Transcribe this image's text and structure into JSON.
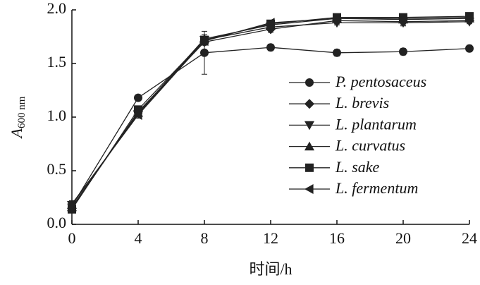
{
  "chart_data": {
    "type": "line",
    "xlabel": "时间/h",
    "ylabel": {
      "text": "A",
      "subscript": "600 nm"
    },
    "x": [
      0,
      4,
      8,
      12,
      16,
      20,
      24
    ],
    "xlim": [
      0,
      24
    ],
    "xticks": [
      0,
      4,
      8,
      12,
      16,
      20,
      24
    ],
    "ylim": [
      0,
      2.0
    ],
    "yticks": [
      {
        "value": 0,
        "label": "0.0"
      },
      0.5,
      {
        "value": 1,
        "label": "1.0"
      },
      1.5,
      {
        "value": 2,
        "label": "2.0"
      }
    ],
    "legend": "right",
    "series": [
      {
        "name": "P. pentosaceus",
        "color": "#222",
        "marker": "circle",
        "values": [
          0.17,
          1.18,
          1.6,
          1.65,
          1.6,
          1.61,
          1.64
        ],
        "errors": [
          0.02,
          0.02,
          0.2,
          0.03,
          0.03,
          0.03,
          0.03
        ]
      },
      {
        "name": "L. brevis",
        "color": "#222",
        "marker": "diamond",
        "values": [
          0.15,
          1.05,
          1.7,
          1.82,
          1.9,
          1.89,
          1.9
        ],
        "errors": [
          0.02,
          0.03,
          0.03,
          0.03,
          0.03,
          0.03,
          0.02
        ]
      },
      {
        "name": "L. plantarum",
        "color": "#222",
        "marker": "triangle-down",
        "values": [
          0.18,
          1.03,
          1.72,
          1.84,
          1.88,
          1.88,
          1.89
        ],
        "errors": [
          0.02,
          0.03,
          0.03,
          0.02,
          0.02,
          0.03,
          0.02
        ]
      },
      {
        "name": "L. curvatus",
        "color": "#222",
        "marker": "triangle-up",
        "values": [
          0.16,
          1.04,
          1.73,
          1.86,
          1.92,
          1.91,
          1.92
        ],
        "errors": [
          0.02,
          0.03,
          0.04,
          0.03,
          0.02,
          0.02,
          0.02
        ]
      },
      {
        "name": "L. sake",
        "color": "#222",
        "marker": "square",
        "values": [
          0.14,
          1.07,
          1.72,
          1.87,
          1.93,
          1.93,
          1.94
        ],
        "errors": [
          0.02,
          0.03,
          0.03,
          0.02,
          0.02,
          0.02,
          0.02
        ]
      },
      {
        "name": "L. fermentum",
        "color": "#222",
        "marker": "triangle-left",
        "values": [
          0.19,
          1.02,
          1.71,
          1.88,
          1.92,
          1.92,
          1.93
        ],
        "errors": [
          0.03,
          0.03,
          0.03,
          0.02,
          0.02,
          0.02,
          0.02
        ]
      }
    ]
  }
}
